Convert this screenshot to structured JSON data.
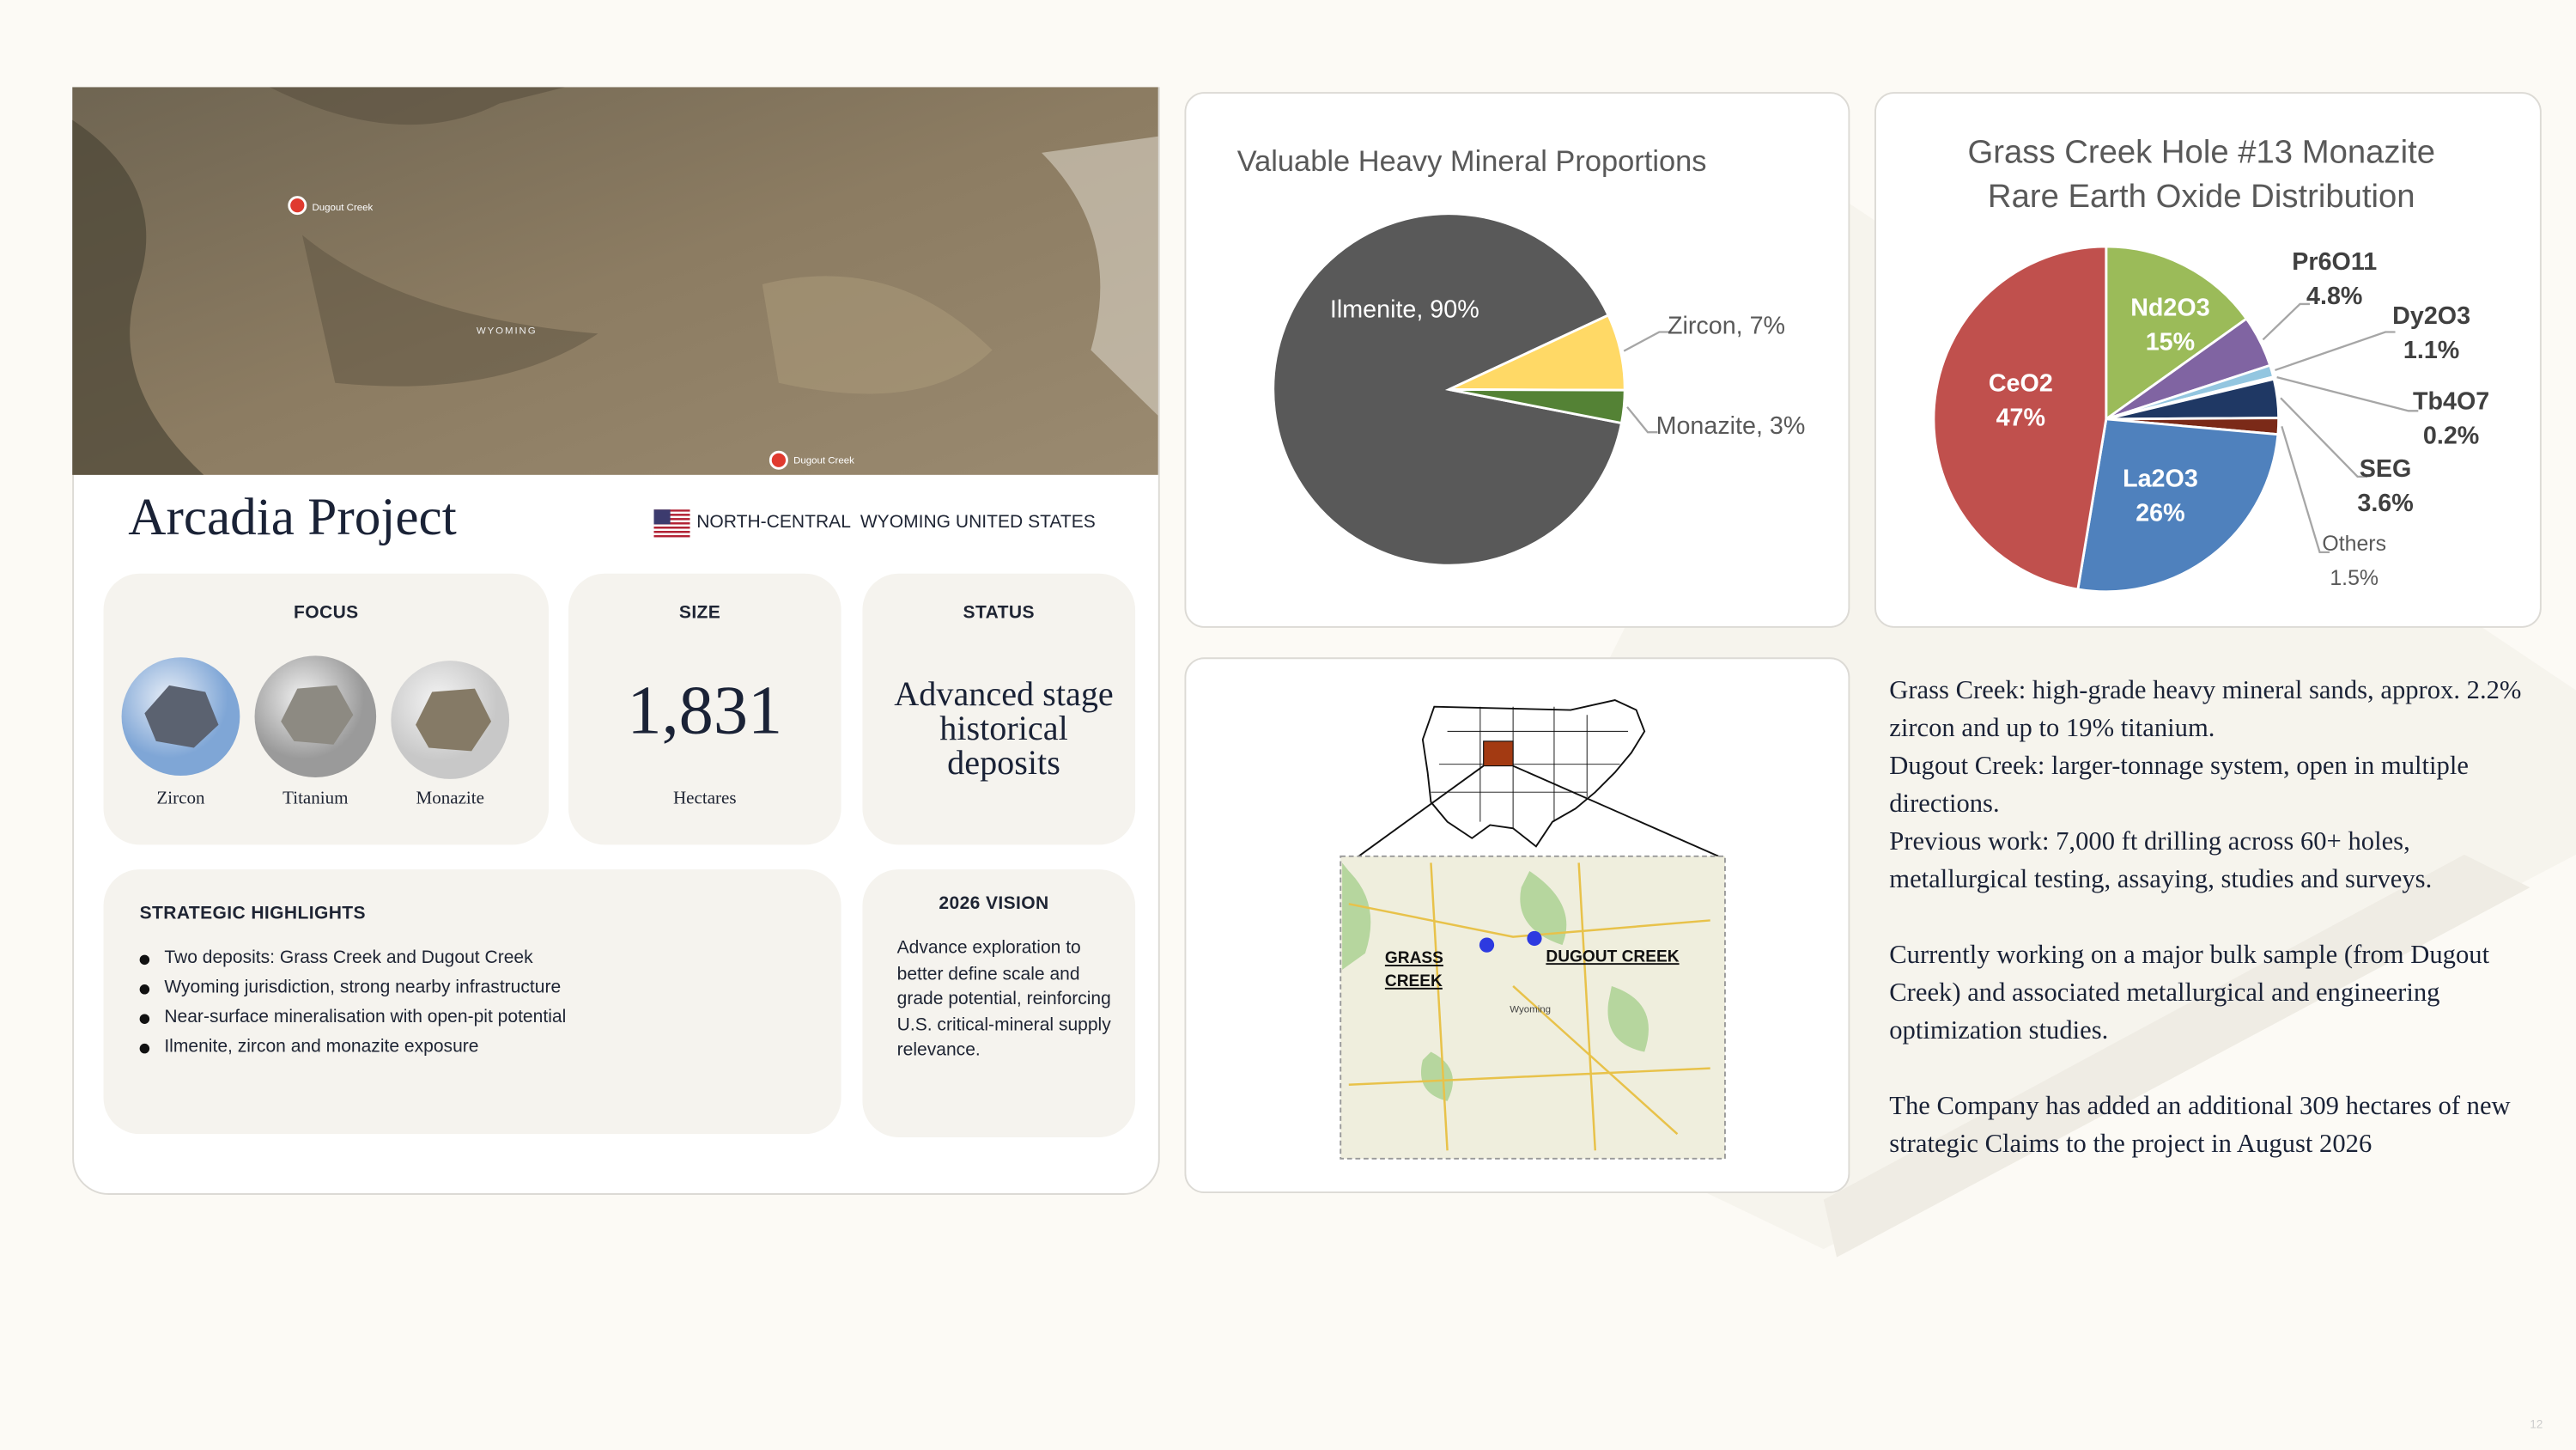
{
  "slide": {
    "map_labels": [
      "Dugout Creek",
      "Dugout Creek",
      "WYOMING"
    ],
    "project": {
      "title": "Arcadia Project",
      "location": "NORTH-CENTRAL  WYOMING UNITED STATES"
    },
    "focus": {
      "label": "FOCUS",
      "items": [
        "Zircon",
        "Titanium",
        "Monazite"
      ]
    },
    "size": {
      "label": "SIZE",
      "value": "1,831",
      "unit": "Hectares"
    },
    "status": {
      "label": "STATUS",
      "value": "Advanced stage historical deposits"
    },
    "highlights": {
      "label": "STRATEGIC HIGHLIGHTS",
      "items": [
        "Two deposits: Grass Creek and Dugout Creek",
        "Wyoming jurisdiction, strong nearby infrastructure",
        "Near-surface mineralisation with open-pit potential",
        "Ilmenite, zircon and monazite exposure"
      ]
    },
    "vision": {
      "label": "2026 VISION",
      "text": "Advance exploration to better define scale and grade potential, reinforcing U.S. critical-mineral supply relevance."
    },
    "location_map": {
      "labels": [
        "GRASS CREEK",
        "DUGOUT CREEK",
        "Wyoming"
      ]
    },
    "summary": {
      "paragraphs": [
        [
          "Grass Creek: high-grade heavy mineral sands, approx. 2.2% zircon and up to 19% titanium.",
          "Dugout Creek: larger-tonnage system, open in multiple directions.",
          "Previous work: 7,000 ft drilling across 60+ holes, metallurgical testing, assaying, studies and surveys."
        ],
        [
          "Currently working on a major bulk sample (from Dugout Creek) and associated metallurgical and engineering optimization studies."
        ],
        [
          "The Company has added an additional 309 hectares of new strategic Claims to the project in August 2026"
        ]
      ]
    },
    "page_number": "12"
  },
  "chart_data": [
    {
      "type": "pie",
      "title": "Valuable Heavy Mineral Proportions",
      "values": [
        90,
        7,
        3
      ],
      "value_labels": [
        "Ilmenite, 90%",
        "Zircon, 7%",
        "Monazite, 3%"
      ],
      "colors": [
        "#595959",
        "#ffd966",
        "#548235"
      ]
    },
    {
      "type": "pie",
      "title": "Grass Creek Hole #13 Monazite Rare Earth Oxide Distribution",
      "categories": [
        "Nd2O3",
        "Pr6O11",
        "Dy2O3",
        "Tb4O7",
        "SEG",
        "Others",
        "La2O3",
        "CeO2"
      ],
      "values": [
        15,
        4.8,
        1.1,
        0.2,
        3.6,
        1.5,
        26,
        47
      ],
      "value_labels": [
        "15%",
        "4.8%",
        "1.1%",
        "0.2%",
        "3.6%",
        "1.5%",
        "26%",
        "47%"
      ],
      "colors": [
        "#9bbb59",
        "#8064a2",
        "#93c6e0",
        "#c9d3e8",
        "#1f3864",
        "#7b2a18",
        "#4f81bd",
        "#c0504d"
      ]
    }
  ]
}
